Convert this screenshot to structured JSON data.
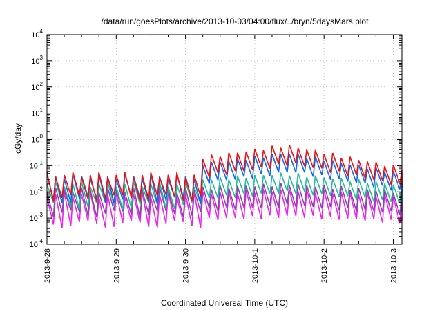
{
  "chart_data": {
    "type": "line",
    "title": "/data/run/goesPlots/archive/2013-10-03/04:00/flux/../bryn/5daysMars.plot",
    "xlabel": "Coordinated Universal Time (UTC)",
    "ylabel": "cGy/day",
    "yscale": "log",
    "ylim": [
      0.0001,
      10000
    ],
    "xlim": [
      "2013-09-28",
      "2013-10-03 03:00"
    ],
    "grid": true,
    "x_ticks": [
      "2013-9-28",
      "2013-9-29",
      "2013-9-30",
      "2013-10-1",
      "2013-10-2",
      "2013-10-3"
    ],
    "y_ticks": [
      {
        "value": 0.0001,
        "base": "10",
        "exp": "-4"
      },
      {
        "value": 0.001,
        "base": "10",
        "exp": "-3"
      },
      {
        "value": 0.01,
        "base": "10",
        "exp": "-2"
      },
      {
        "value": 0.1,
        "base": "10",
        "exp": "-1"
      },
      {
        "value": 1,
        "base": "10",
        "exp": "0"
      },
      {
        "value": 10,
        "base": "10",
        "exp": "1"
      },
      {
        "value": 100,
        "base": "10",
        "exp": "2"
      },
      {
        "value": 1000,
        "base": "10",
        "exp": "3"
      },
      {
        "value": 10000,
        "base": "10",
        "exp": "4"
      }
    ],
    "pattern": "sawtooth",
    "peaks_per_day": 8,
    "event_start": "2013-09-30 05:00",
    "series": [
      {
        "color": "#ee1111",
        "quiet_peak": 0.045,
        "quiet_trough": 0.006,
        "event_max_peak": 0.6,
        "event_end_peak": 0.08,
        "event_trough_ratio": 0.2
      },
      {
        "color": "#1166ee",
        "quiet_peak": 0.04,
        "quiet_trough": 0.005,
        "event_max_peak": 0.3,
        "event_end_peak": 0.05,
        "event_trough_ratio": 0.2
      },
      {
        "color": "#22bb99",
        "quiet_peak": 0.02,
        "quiet_trough": 0.003,
        "event_max_peak": 0.05,
        "event_end_peak": 0.018,
        "event_trough_ratio": 0.2
      },
      {
        "color": "#8844aa",
        "quiet_peak": 0.012,
        "quiet_trough": 0.0015,
        "event_max_peak": 0.02,
        "event_end_peak": 0.01,
        "event_trough_ratio": 0.15
      },
      {
        "color": "#ee22ee",
        "quiet_peak": 0.008,
        "quiet_trough": 0.0006,
        "event_max_peak": 0.012,
        "event_end_peak": 0.007,
        "event_trough_ratio": 0.1
      }
    ]
  }
}
